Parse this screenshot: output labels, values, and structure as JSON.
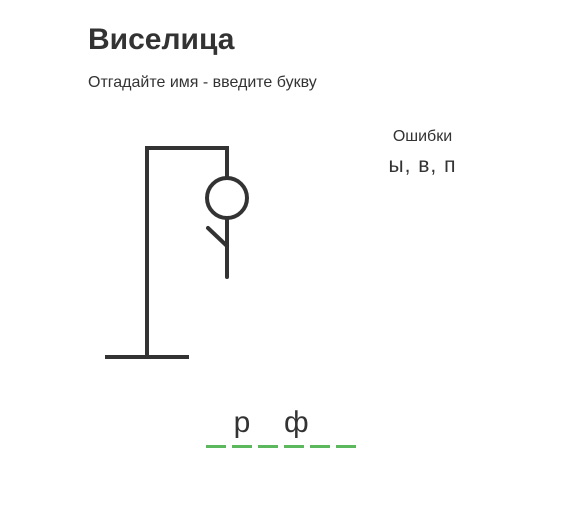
{
  "title": "Виселица",
  "subtitle": "Отгадайте имя - введите букву",
  "wrong": {
    "label": "Ошибки",
    "letters": "ы, в, п",
    "count": 3
  },
  "word": {
    "slots": [
      "",
      "р",
      "",
      "ф",
      "",
      ""
    ]
  },
  "colors": {
    "text": "#333333",
    "underline": "#5cb85c",
    "gallows": "#333333"
  },
  "figure": {
    "visible_parts": [
      "head",
      "body",
      "left-arm"
    ]
  }
}
